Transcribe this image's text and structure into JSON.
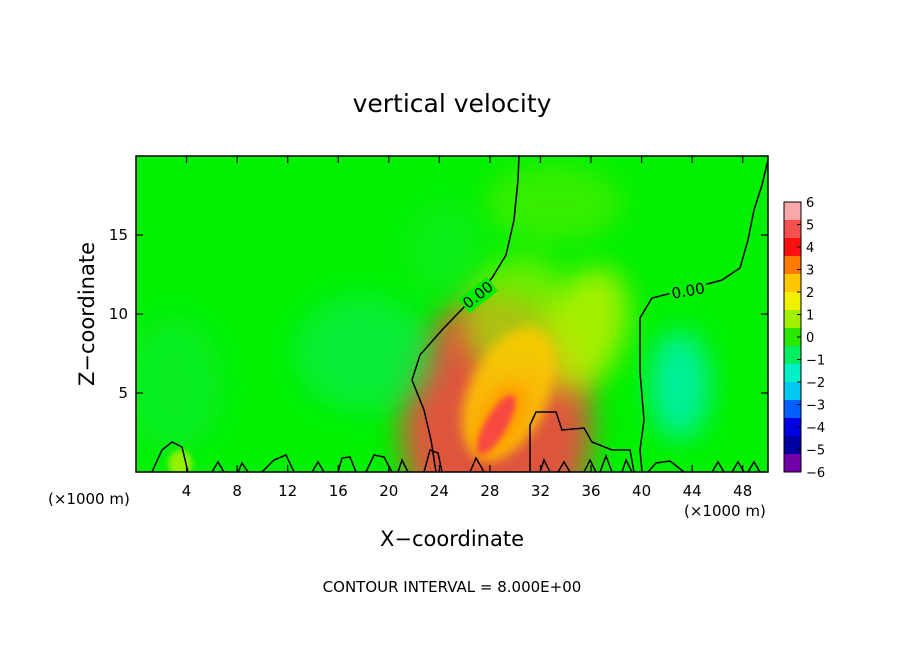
{
  "chart_data": {
    "type": "heatmap",
    "title": "vertical velocity",
    "xlabel": "X−coordinate",
    "ylabel": "Z−coordinate",
    "x_units": "(×1000 m)",
    "xlim": [
      0,
      50
    ],
    "ylim": [
      0,
      20
    ],
    "x_ticks": [
      4,
      8,
      12,
      16,
      20,
      24,
      28,
      32,
      36,
      40,
      44,
      48
    ],
    "y_ticks": [
      5,
      10,
      15
    ],
    "colorbar": {
      "range": [
        -6,
        6
      ],
      "ticks": [
        6,
        5,
        4,
        3,
        2,
        1,
        0,
        -1,
        -2,
        -3,
        -4,
        -5,
        -6
      ],
      "tick_labels": [
        "6",
        "5",
        "4",
        "3",
        "2",
        "1",
        "0",
        "−1",
        "−2",
        "−3",
        "−4",
        "−5",
        "−6"
      ],
      "colors": [
        "#f8a8a8",
        "#f55050",
        "#ff1010",
        "#ff7a00",
        "#ffc800",
        "#f0f000",
        "#a0f000",
        "#28e800",
        "#00ee60",
        "#00f0c8",
        "#00c8f0",
        "#0060ff",
        "#0000e0",
        "#0000a0",
        "#7000a8"
      ]
    },
    "background_value": 0,
    "features": [
      {
        "x": 28.5,
        "z": 3.0,
        "value": 5.0
      },
      {
        "x": 29.5,
        "z": 5.0,
        "value": 2.5
      },
      {
        "x": 35.5,
        "z": 9.0,
        "value": 1.2
      },
      {
        "x": 30.0,
        "z": 10.0,
        "value": 0.8
      },
      {
        "x": 43.0,
        "z": 5.5,
        "value": -1.6
      },
      {
        "x": 18.0,
        "z": 7.5,
        "value": -0.7
      },
      {
        "x": 3.0,
        "z": 5.5,
        "value": -0.5
      },
      {
        "x": 33.0,
        "z": 17.0,
        "value": 0.5
      },
      {
        "x": 24.5,
        "z": 14.0,
        "value": -0.4
      },
      {
        "x": 3.5,
        "z": 0.5,
        "value": 0.9
      }
    ],
    "contour_labels": [
      "0.00",
      "0.00"
    ],
    "contour_interval_text": "CONTOUR INTERVAL = 8.000E+00"
  }
}
